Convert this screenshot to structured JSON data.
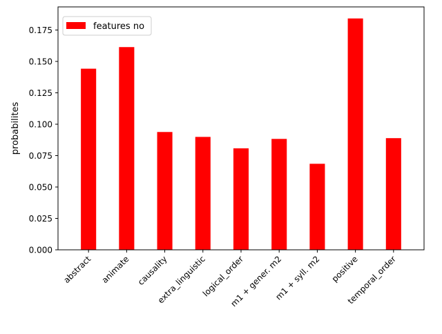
{
  "chart_data": {
    "type": "bar",
    "categories": [
      "abstract",
      "animate",
      "causality",
      "extra_linguistic",
      "logical_order",
      "m1 + gener. m2",
      "m1 + syll. m2",
      "positive",
      "temporal_order"
    ],
    "series": [
      {
        "name": "features no",
        "color": "#ff0000",
        "values": [
          0.1442,
          0.1614,
          0.0938,
          0.0899,
          0.0808,
          0.0883,
          0.0685,
          0.1842,
          0.0889
        ]
      }
    ],
    "ylabel": "probabilites",
    "xlabel": "",
    "title": "",
    "ylim": [
      0,
      0.1934
    ],
    "yticks": [
      "0.000",
      "0.025",
      "0.050",
      "0.075",
      "0.100",
      "0.125",
      "0.150",
      "0.175"
    ],
    "ytick_values": [
      0,
      0.025,
      0.05,
      0.075,
      0.1,
      0.125,
      0.15,
      0.175
    ],
    "grid": false,
    "legend_position": "top-left",
    "xtick_rotation": "45deg"
  }
}
